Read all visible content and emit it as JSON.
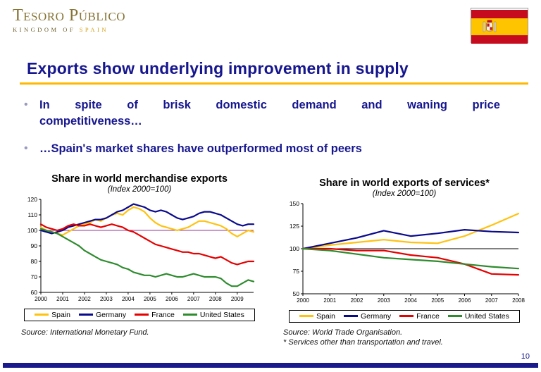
{
  "header": {
    "logo_title": "Tesoro Público",
    "logo_subtitle_1": "KINGDOM OF",
    "logo_subtitle_2": "SPAIN"
  },
  "title": "Exports show underlying improvement in supply",
  "bullets": [
    {
      "lines": [
        "In spite of brisk domestic demand and waning price",
        "competitiveness…"
      ]
    },
    {
      "lines": [
        "…Spain's market shares have outperformed most of peers"
      ]
    }
  ],
  "page_number": "10",
  "colors": {
    "title_navy": "#16168f",
    "underline_gold": "#ffb800",
    "bottom_bar_navy": "#1a1a8c",
    "spain_yellow": "#ffc20e",
    "germany_blue": "#0a0a8c",
    "france_red": "#e60000",
    "us_green": "#2e8b2e"
  },
  "chart_data": [
    {
      "type": "line",
      "title": "Share in world merchandise exports",
      "subtitle": "(Index 2000=100)",
      "xlabel": "",
      "ylabel": "",
      "xlim": [
        2000,
        2009.75
      ],
      "ylim": [
        60,
        120
      ],
      "xticks": [
        2000,
        2001,
        2002,
        2003,
        2004,
        2005,
        2006,
        2007,
        2008,
        2009
      ],
      "yticks": [
        60,
        70,
        80,
        90,
        100,
        110,
        120
      ],
      "grid": false,
      "legend_position": "bottom",
      "refline": 100,
      "refline_color": "#993399",
      "x": [
        2000,
        2000.25,
        2000.5,
        2000.75,
        2001,
        2001.25,
        2001.5,
        2001.75,
        2002,
        2002.25,
        2002.5,
        2002.75,
        2003,
        2003.25,
        2003.5,
        2003.75,
        2004,
        2004.25,
        2004.5,
        2004.75,
        2005,
        2005.25,
        2005.5,
        2005.75,
        2006,
        2006.25,
        2006.5,
        2006.75,
        2007,
        2007.25,
        2007.5,
        2007.75,
        2008,
        2008.25,
        2008.5,
        2008.75,
        2009,
        2009.25,
        2009.5,
        2009.75
      ],
      "series": [
        {
          "name": "Spain",
          "color": "#ffc20e",
          "values": [
            102,
            100,
            99,
            98,
            97,
            99,
            101,
            103,
            104,
            105,
            107,
            106,
            108,
            110,
            111,
            110,
            113,
            115,
            114,
            112,
            108,
            105,
            103,
            102,
            101,
            100,
            101,
            102,
            104,
            106,
            106,
            105,
            104,
            103,
            101,
            98,
            96,
            98,
            100,
            99
          ]
        },
        {
          "name": "Germany",
          "color": "#0a0a8c",
          "values": [
            100,
            99,
            98,
            99,
            100,
            102,
            103,
            104,
            105,
            106,
            107,
            107,
            108,
            110,
            112,
            113,
            115,
            117,
            116,
            115,
            113,
            112,
            113,
            112,
            110,
            108,
            107,
            108,
            109,
            111,
            112,
            112,
            111,
            110,
            108,
            106,
            104,
            103,
            104,
            104
          ]
        },
        {
          "name": "France",
          "color": "#e60000",
          "values": [
            104,
            102,
            101,
            100,
            101,
            103,
            104,
            103,
            103,
            104,
            103,
            102,
            103,
            104,
            103,
            102,
            100,
            99,
            97,
            95,
            93,
            91,
            90,
            89,
            88,
            87,
            86,
            86,
            85,
            85,
            84,
            83,
            82,
            83,
            81,
            79,
            78,
            79,
            80,
            80
          ]
        },
        {
          "name": "United States",
          "color": "#2e8b2e",
          "values": [
            101,
            100,
            99,
            98,
            96,
            94,
            92,
            90,
            87,
            85,
            83,
            81,
            80,
            79,
            78,
            76,
            75,
            73,
            72,
            71,
            71,
            70,
            71,
            72,
            71,
            70,
            70,
            71,
            72,
            71,
            70,
            70,
            70,
            69,
            66,
            64,
            64,
            66,
            68,
            67
          ]
        }
      ],
      "source": "Source: International Monetary Fund."
    },
    {
      "type": "line",
      "title": "Share in world exports of services*",
      "subtitle": "(Index 2000=100)",
      "xlabel": "",
      "ylabel": "",
      "xlim": [
        2000,
        2008
      ],
      "ylim": [
        50,
        150
      ],
      "xticks": [
        2000,
        2001,
        2002,
        2003,
        2004,
        2005,
        2006,
        2007,
        2008
      ],
      "yticks": [
        50,
        75,
        100,
        125,
        150
      ],
      "grid": false,
      "legend_position": "bottom",
      "refline": 100,
      "refline_color": "#000000",
      "x": [
        2000,
        2001,
        2002,
        2003,
        2004,
        2005,
        2006,
        2007,
        2008
      ],
      "series": [
        {
          "name": "Spain",
          "color": "#ffc20e",
          "values": [
            100,
            104,
            107,
            110,
            107,
            106,
            114,
            126,
            139
          ]
        },
        {
          "name": "Germany",
          "color": "#0a0a8c",
          "values": [
            100,
            106,
            112,
            120,
            114,
            117,
            121,
            119,
            118
          ]
        },
        {
          "name": "France",
          "color": "#e60000",
          "values": [
            100,
            100,
            98,
            98,
            93,
            90,
            83,
            72,
            71
          ]
        },
        {
          "name": "United States",
          "color": "#2e8b2e",
          "values": [
            100,
            98,
            94,
            90,
            88,
            86,
            83,
            80,
            78
          ]
        }
      ],
      "source": "Source: World Trade Organisation.",
      "footnote": "* Services other than transportation and travel."
    }
  ]
}
